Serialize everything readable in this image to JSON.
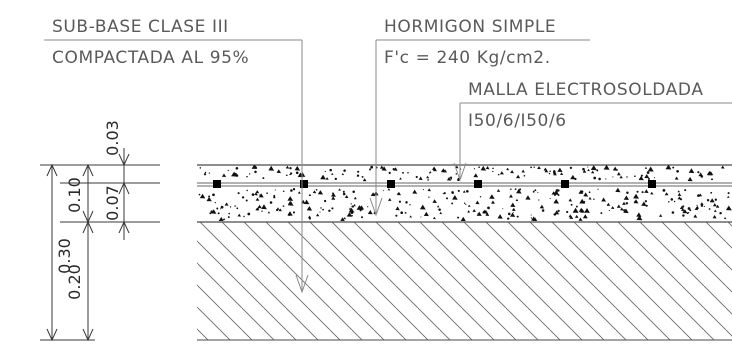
{
  "callouts": {
    "subbase_line1": "SUB-BASE CLASE III",
    "subbase_line2": "COMPACTADA AL 95%",
    "concrete_line1": "HORMIGON SIMPLE",
    "concrete_line2": "F'c = 240 Kg/cm2.",
    "mesh_line1": "MALLA ELECTROSOLDADA",
    "mesh_line2": "I50/6/I50/6"
  },
  "dimensions": {
    "total": "0.30",
    "slab": "0.10",
    "subbase": "0.20",
    "top_cover": "0.03",
    "bottom_cover": "0.07"
  },
  "colors": {
    "line": "#4a4a4a",
    "hatch": "#6a6a6a",
    "speckle": "#111111",
    "rebar": "#000000"
  }
}
